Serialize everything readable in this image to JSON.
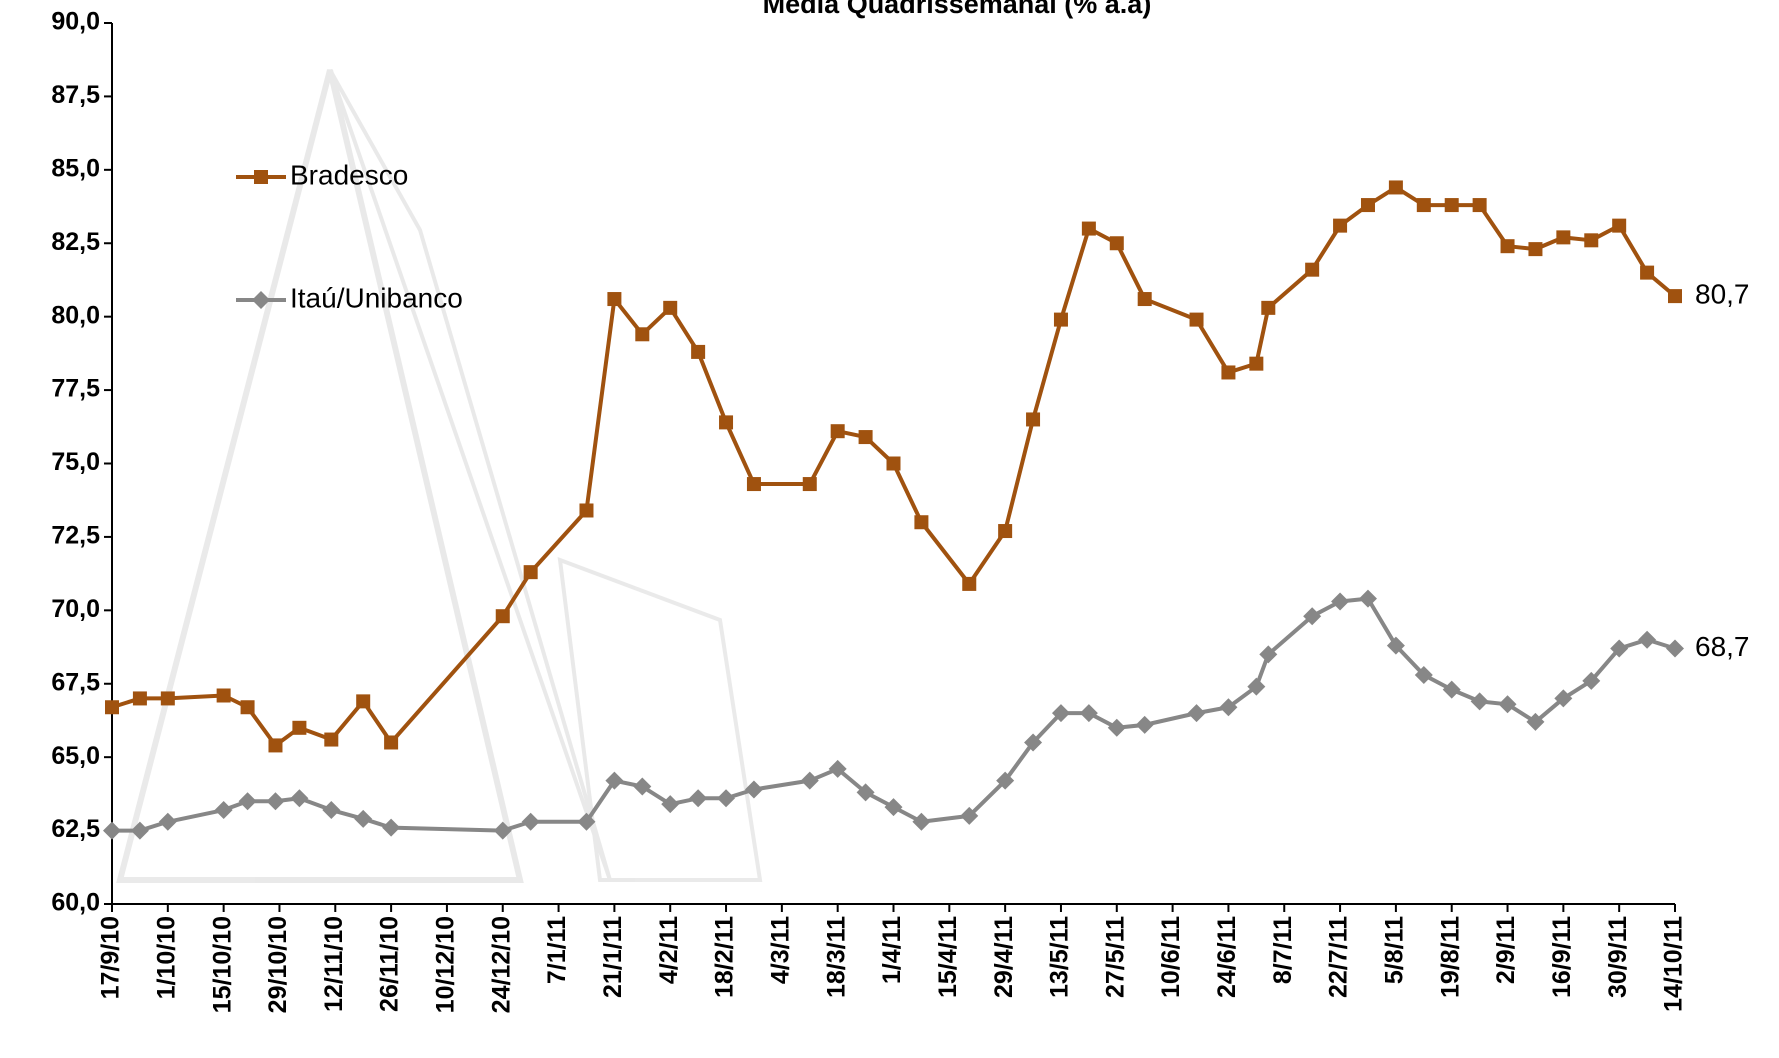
{
  "chart_data": {
    "type": "line",
    "title": "Média Quadrissemanal (% a.a)",
    "x": [
      "17/9/10",
      "24/9/10",
      "1/10/10",
      "15/10/10",
      "21/10/10",
      "28/10/10",
      "3/11/10",
      "11/11/10",
      "19/11/10",
      "26/11/10",
      "24/12/10",
      "31/12/10",
      "14/1/11",
      "21/1/11",
      "28/1/11",
      "4/2/11",
      "11/2/11",
      "18/2/11",
      "25/2/11",
      "11/3/11",
      "18/3/11",
      "25/3/11",
      "1/4/11",
      "8/4/11",
      "20/4/11",
      "29/4/11",
      "6/5/11",
      "13/5/11",
      "20/5/11",
      "27/5/11",
      "3/6/11",
      "16/6/11",
      "24/6/11",
      "1/7/11",
      "4/7/11",
      "15/7/11",
      "22/7/11",
      "29/7/11",
      "5/8/11",
      "12/8/11",
      "19/8/11",
      "26/8/11",
      "2/9/11",
      "9/9/11",
      "16/9/11",
      "23/9/11",
      "30/9/11",
      "7/10/11",
      "14/10/11"
    ],
    "series": [
      {
        "name": "Bradesco",
        "color": "#a0520f",
        "marker": "square",
        "values": [
          66.7,
          67.0,
          67.0,
          67.1,
          66.7,
          65.4,
          66.0,
          65.6,
          66.9,
          65.5,
          69.8,
          71.3,
          73.4,
          80.6,
          79.4,
          80.3,
          78.8,
          76.4,
          74.3,
          74.3,
          76.1,
          75.9,
          75.0,
          73.0,
          70.9,
          72.7,
          76.5,
          79.9,
          83.0,
          82.5,
          80.6,
          79.9,
          78.1,
          78.4,
          80.3,
          81.6,
          83.1,
          83.8,
          84.4,
          83.8,
          83.8,
          83.8,
          82.4,
          82.3,
          82.7,
          82.6,
          83.1,
          81.5,
          80.7
        ],
        "value_labels": [
          null,
          null,
          null,
          null,
          null,
          null,
          null,
          null,
          null,
          null,
          null,
          null,
          null,
          null,
          null,
          null,
          null,
          null,
          null,
          null,
          null,
          null,
          null,
          null,
          null,
          null,
          null,
          null,
          null,
          null,
          null,
          null,
          null,
          null,
          null,
          null,
          null,
          null,
          null,
          null,
          null,
          null,
          null,
          null,
          null,
          null,
          null,
          null,
          "80,7"
        ]
      },
      {
        "name": "Itaú/Unibanco",
        "color": "#878787",
        "marker": "diamond",
        "values": [
          62.5,
          62.5,
          62.8,
          63.2,
          63.5,
          63.5,
          63.6,
          63.2,
          62.9,
          62.6,
          62.5,
          62.8,
          62.8,
          64.2,
          64.0,
          63.4,
          63.6,
          63.6,
          63.9,
          64.2,
          64.6,
          63.8,
          63.3,
          62.8,
          63.0,
          64.2,
          65.5,
          66.5,
          66.5,
          66.0,
          66.1,
          66.5,
          66.7,
          67.4,
          68.5,
          69.8,
          70.3,
          70.4,
          68.8,
          67.8,
          67.3,
          66.9,
          66.8,
          66.2,
          67.0,
          67.6,
          68.7,
          69.0,
          68.7
        ],
        "value_labels": [
          null,
          null,
          null,
          null,
          null,
          null,
          null,
          null,
          null,
          null,
          null,
          null,
          null,
          null,
          null,
          null,
          null,
          null,
          null,
          null,
          null,
          null,
          null,
          null,
          null,
          null,
          null,
          null,
          null,
          null,
          null,
          null,
          null,
          null,
          null,
          null,
          null,
          null,
          null,
          null,
          null,
          null,
          null,
          null,
          null,
          null,
          null,
          null,
          "68,7"
        ]
      }
    ],
    "xlim": [
      "17/9/10",
      "14/10/11"
    ],
    "xticks": [
      "17/9/10",
      "1/10/10",
      "15/10/10",
      "29/10/10",
      "12/11/10",
      "26/11/10",
      "10/12/10",
      "24/12/10",
      "7/1/11",
      "21/1/11",
      "4/2/11",
      "18/2/11",
      "4/3/11",
      "18/3/11",
      "1/4/11",
      "15/4/11",
      "29/4/11",
      "13/5/11",
      "27/5/11",
      "10/6/11",
      "24/6/11",
      "8/7/11",
      "22/7/11",
      "5/8/11",
      "19/8/11",
      "2/9/11",
      "16/9/11",
      "30/9/11",
      "14/10/11"
    ],
    "ylim": [
      60,
      90
    ],
    "yticks": [
      {
        "value": 60,
        "label": "60,0"
      },
      {
        "value": 62.5,
        "label": "62,5"
      },
      {
        "value": 65,
        "label": "65,0"
      },
      {
        "value": 67.5,
        "label": "67,5"
      },
      {
        "value": 70,
        "label": "70,0"
      },
      {
        "value": 72.5,
        "label": "72,5"
      },
      {
        "value": 75,
        "label": "75,0"
      },
      {
        "value": 77.5,
        "label": "77,5"
      },
      {
        "value": 80,
        "label": "80,0"
      },
      {
        "value": 82.5,
        "label": "82,5"
      },
      {
        "value": 85,
        "label": "85,0"
      },
      {
        "value": 87.5,
        "label": "87,5"
      },
      {
        "value": 90,
        "label": "90,0"
      }
    ],
    "grid": false,
    "legend": "upper left"
  }
}
